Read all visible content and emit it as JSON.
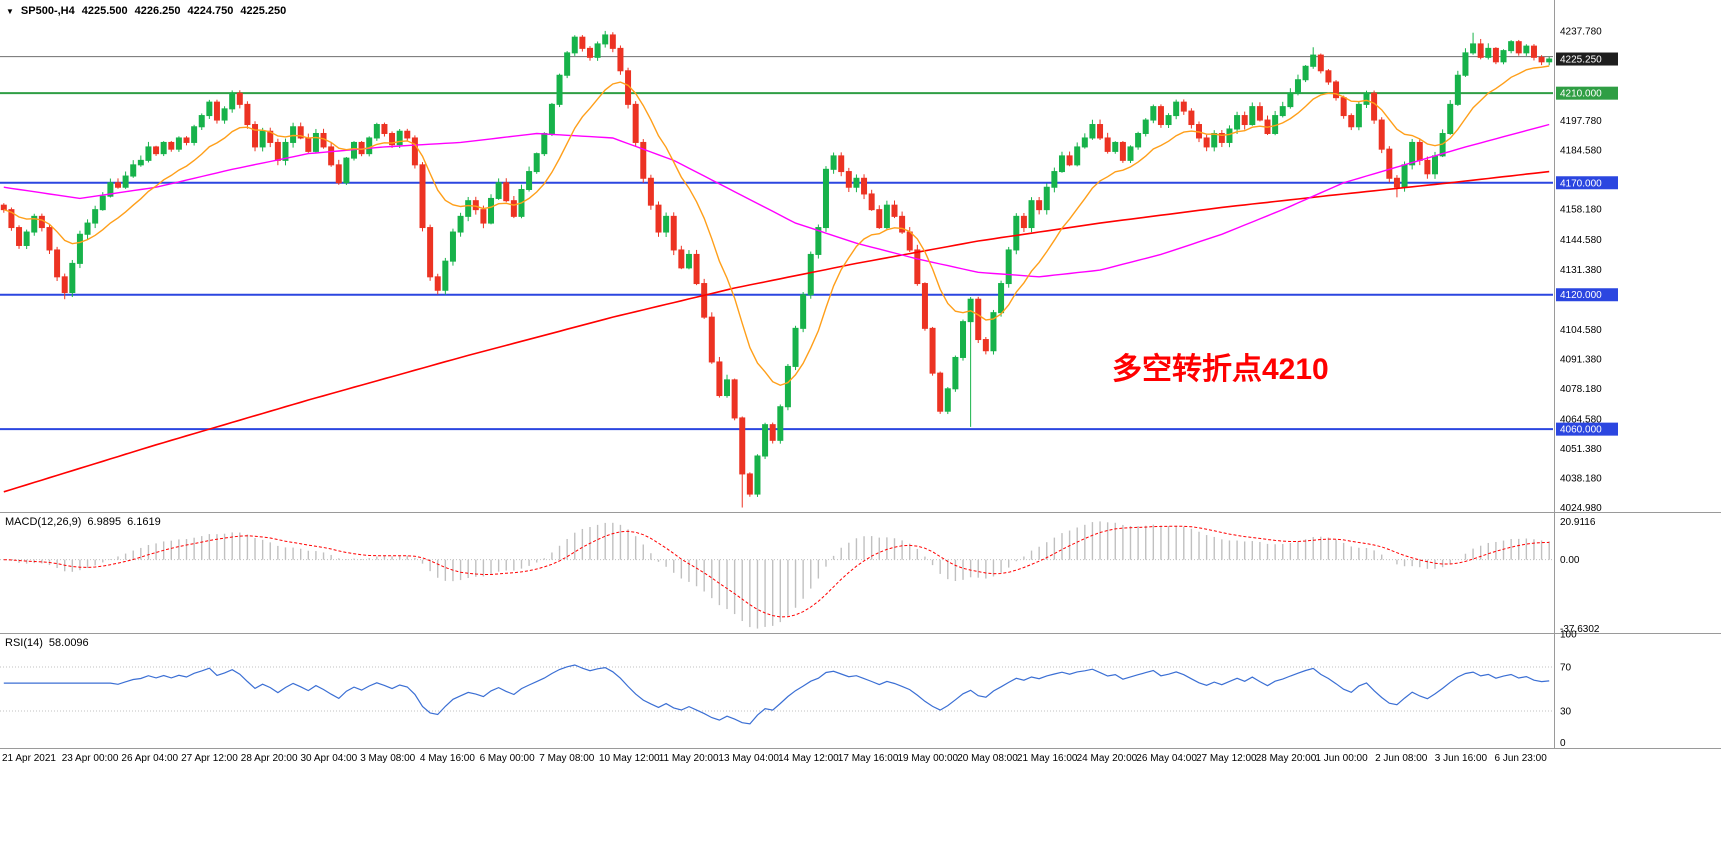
{
  "header": {
    "dropdown_icon": "▼",
    "symbol_period": "SP500-,H4",
    "open": "4225.500",
    "high": "4226.250",
    "low": "4224.750",
    "close": "4225.250"
  },
  "indicators": {
    "macd": {
      "title": "MACD(12,26,9)",
      "value1": "6.9895",
      "value2": "6.1619"
    },
    "rsi": {
      "title": "RSI(14)",
      "value": "58.0096"
    }
  },
  "annotation": {
    "text": "多空转折点4210",
    "color": "#ff0000"
  },
  "chart_data": {
    "type": "candlestick",
    "symbol": "SP500-",
    "timeframe": "H4",
    "title": "SP500- H4 candlestick chart with MACD and RSI",
    "ylim": [
      4023.0,
      4251.6
    ],
    "price_axis_labels": [
      {
        "text": "4237.780",
        "price": 4237.78
      },
      {
        "text": "4197.780",
        "price": 4197.78
      },
      {
        "text": "4184.580",
        "price": 4184.58
      },
      {
        "text": "4158.180",
        "price": 4158.18
      },
      {
        "text": "4144.580",
        "price": 4144.58
      },
      {
        "text": "4131.380",
        "price": 4131.38
      },
      {
        "text": "4104.580",
        "price": 4104.58
      },
      {
        "text": "4091.380",
        "price": 4091.38
      },
      {
        "text": "4078.180",
        "price": 4078.18
      },
      {
        "text": "4064.580",
        "price": 4064.58
      },
      {
        "text": "4051.380",
        "price": 4051.38
      },
      {
        "text": "4038.180",
        "price": 4038.18
      },
      {
        "text": "4024.980",
        "price": 4024.98
      }
    ],
    "levels": [
      {
        "line_price": 4226.3,
        "badge_price": 4225.25,
        "label": "4225.250",
        "line_color": "#6f6f6f",
        "badge_bg": "#1e1e1e",
        "line_width": 1
      },
      {
        "line_price": 4210.0,
        "badge_price": 4210.0,
        "label": "4210.000",
        "line_color": "#2f9e44",
        "badge_bg": "#2f9e44",
        "line_width": 2
      },
      {
        "line_price": 4170.0,
        "badge_price": 4170.0,
        "label": "4170.000",
        "line_color": "#2b46e0",
        "badge_bg": "#2b46e0",
        "line_width": 2
      },
      {
        "line_price": 4120.0,
        "badge_price": 4120.0,
        "label": "4120.000",
        "line_color": "#2b46e0",
        "badge_bg": "#2b46e0",
        "line_width": 2
      },
      {
        "line_price": 4060.0,
        "badge_price": 4060.0,
        "label": "4060.000",
        "line_color": "#2b46e0",
        "badge_bg": "#2b46e0",
        "line_width": 2
      }
    ],
    "time_labels": [
      "21 Apr 2021",
      "23 Apr 00:00",
      "26 Apr 04:00",
      "27 Apr 12:00",
      "28 Apr 20:00",
      "30 Apr 04:00",
      "3 May 08:00",
      "4 May 16:00",
      "6 May 00:00",
      "7 May 08:00",
      "10 May 12:00",
      "11 May 20:00",
      "13 May 04:00",
      "14 May 12:00",
      "17 May 16:00",
      "19 May 00:00",
      "20 May 08:00",
      "21 May 16:00",
      "24 May 20:00",
      "26 May 04:00",
      "27 May 12:00",
      "28 May 20:00",
      "1 Jun 00:00",
      "2 Jun 08:00",
      "3 Jun 16:00",
      "6 Jun 23:00"
    ],
    "closes": [
      4158,
      4150,
      4142,
      4148,
      4155,
      4150,
      4140,
      4128,
      4121,
      4134,
      4147,
      4152,
      4158,
      4164,
      4170,
      4168,
      4173,
      4178,
      4180,
      4186,
      4183,
      4188,
      4185,
      4190,
      4188,
      4195,
      4200,
      4206,
      4198,
      4203,
      4210,
      4205,
      4196,
      4186,
      4193,
      4188,
      4180,
      4188,
      4195,
      4190,
      4184,
      4192,
      4186,
      4178,
      4170,
      4181,
      4188,
      4183,
      4190,
      4196,
      4192,
      4187,
      4193,
      4190,
      4178,
      4150,
      4128,
      4122,
      4135,
      4148,
      4155,
      4162,
      4158,
      4152,
      4163,
      4170,
      4162,
      4155,
      4167,
      4175,
      4183,
      4192,
      4205,
      4218,
      4228,
      4235,
      4230,
      4226,
      4232,
      4236,
      4230,
      4220,
      4205,
      4188,
      4172,
      4160,
      4148,
      4155,
      4140,
      4132,
      4138,
      4125,
      4110,
      4090,
      4075,
      4082,
      4065,
      4040,
      4031,
      4048,
      4062,
      4055,
      4070,
      4088,
      4105,
      4120,
      4138,
      4150,
      4176,
      4182,
      4175,
      4168,
      4172,
      4165,
      4158,
      4150,
      4160,
      4155,
      4148,
      4140,
      4125,
      4105,
      4085,
      4068,
      4078,
      4092,
      4108,
      4118,
      4100,
      4095,
      4112,
      4125,
      4140,
      4155,
      4150,
      4162,
      4158,
      4168,
      4175,
      4182,
      4178,
      4186,
      4190,
      4196,
      4190,
      4184,
      4188,
      4180,
      4186,
      4192,
      4198,
      4204,
      4196,
      4200,
      4206,
      4202,
      4196,
      4190,
      4186,
      4192,
      4188,
      4194,
      4200,
      4196,
      4204,
      4198,
      4192,
      4200,
      4204,
      4210,
      4216,
      4222,
      4227,
      4220,
      4215,
      4208,
      4200,
      4195,
      4205,
      4210,
      4198,
      4185,
      4172,
      4168,
      4178,
      4188,
      4180,
      4174,
      4182,
      4192,
      4205,
      4218,
      4228,
      4232,
      4226,
      4230,
      4224,
      4229,
      4233,
      4228,
      4231,
      4226,
      4224,
      4225.25
    ],
    "first_open": 4160,
    "wick_highs": {
      "79": 4237.8,
      "172": 4230.5,
      "193": 4237.0
    },
    "wick_lows": {
      "8": 4118.0,
      "97": 4025.0,
      "127": 4061.0,
      "183": 4163.5
    },
    "moving_averages": {
      "fast": {
        "type": "ema",
        "period": 13,
        "color": "#ff9f1a"
      },
      "mid": {
        "color": "#ff00ff",
        "anchors": [
          [
            0,
            4168
          ],
          [
            10,
            4163
          ],
          [
            20,
            4168
          ],
          [
            30,
            4176
          ],
          [
            40,
            4183
          ],
          [
            50,
            4186
          ],
          [
            60,
            4188
          ],
          [
            70,
            4192
          ],
          [
            80,
            4190
          ],
          [
            88,
            4180
          ],
          [
            96,
            4166
          ],
          [
            104,
            4152
          ],
          [
            112,
            4143
          ],
          [
            120,
            4136
          ],
          [
            128,
            4130
          ],
          [
            136,
            4128
          ],
          [
            144,
            4131
          ],
          [
            152,
            4138
          ],
          [
            160,
            4147
          ],
          [
            168,
            4158
          ],
          [
            176,
            4170
          ],
          [
            184,
            4178
          ],
          [
            192,
            4186
          ],
          [
            203,
            4196
          ]
        ]
      },
      "slow": {
        "color": "#ff0000",
        "anchors": [
          [
            0,
            4032
          ],
          [
            20,
            4053
          ],
          [
            40,
            4073
          ],
          [
            60,
            4092
          ],
          [
            80,
            4110
          ],
          [
            96,
            4123
          ],
          [
            112,
            4134
          ],
          [
            128,
            4144
          ],
          [
            144,
            4152
          ],
          [
            160,
            4159
          ],
          [
            176,
            4165
          ],
          [
            190,
            4170
          ],
          [
            203,
            4175
          ]
        ]
      }
    },
    "macd": {
      "fast_period": 12,
      "slow_period": 26,
      "signal_period": 9,
      "axis_labels": [
        {
          "text": "20.9116",
          "value": 20.9116
        },
        {
          "text": "0.00",
          "value": 0
        },
        {
          "text": "-37.6302",
          "value": -37.6302
        }
      ],
      "max_value": 20.9116,
      "min_value": -37.6302,
      "hist_color": "#c0c0c0",
      "signal_color": "#ff0000"
    },
    "rsi": {
      "period": 14,
      "axis_labels": [
        {
          "text": "100",
          "value": 100
        },
        {
          "text": "70",
          "value": 70
        },
        {
          "text": "30",
          "value": 30
        },
        {
          "text": "0",
          "value": 0
        }
      ],
      "level_lines": [
        70,
        30
      ],
      "line_color": "#3b6fd4"
    },
    "colors": {
      "up": "#17b24a",
      "down": "#ec3323",
      "bg": "#ffffff",
      "axis_text": "#000000",
      "separator": "#9a9a9a",
      "level_dotted": "#c0c0c0"
    },
    "legend_position": "none",
    "grid": "off"
  }
}
